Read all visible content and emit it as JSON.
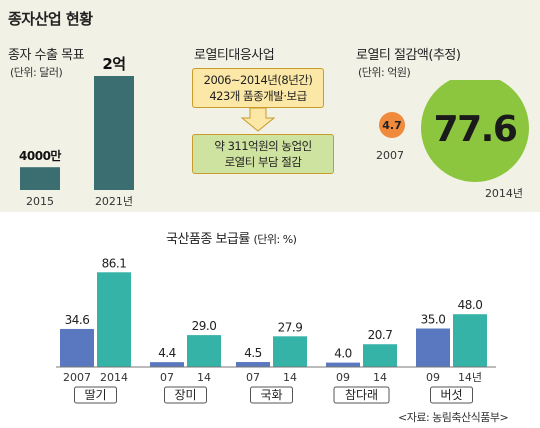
{
  "main_title": "종자산업 현황",
  "export_target": {
    "title": "종자 수출 목표",
    "unit": "(단위: 달러)",
    "bars": [
      {
        "year": "2015",
        "label": "4000만",
        "value": 40000000
      },
      {
        "year": "2021년",
        "label": "2억",
        "value": 200000000
      }
    ]
  },
  "royalty_project": {
    "title": "로열티대응사업",
    "box1_line1": "2006~2014년(8년간)",
    "box1_line2": "423개 품종개발·보급",
    "box2_line1": "약 311억원의 농업인",
    "box2_line2": "로열티 부담 절감"
  },
  "royalty_savings": {
    "title": "로열티 절감액(추정)",
    "unit": "(단위: 억원)",
    "items": [
      {
        "year": "2007",
        "value_label": "4.7",
        "value": 4.7
      },
      {
        "year": "2014년",
        "value_label": "77.6",
        "value": 77.6
      }
    ]
  },
  "colors": {
    "export_bar": "#3b6e70",
    "blue_bar": "#5a78bf",
    "teal_bar": "#36b3a7",
    "small_circle": "#f08a3c",
    "big_circle": "#8cc63f",
    "box_fill": "#fbe7a6",
    "box2_fill": "#cfe3a0"
  },
  "chart_data": {
    "type": "bar",
    "title": "국산품종 보급률",
    "unit": "(단위: %)",
    "ylim": [
      0,
      100
    ],
    "categories": [
      {
        "name": "딸기",
        "x": [
          "2007",
          "2014"
        ],
        "values": [
          34.6,
          86.1
        ],
        "labels": [
          "34.6",
          "86.1"
        ]
      },
      {
        "name": "장미",
        "x": [
          "07",
          "14"
        ],
        "values": [
          4.4,
          29.0
        ],
        "labels": [
          "4.4",
          "29.0"
        ]
      },
      {
        "name": "국화",
        "x": [
          "07",
          "14"
        ],
        "values": [
          4.5,
          27.9
        ],
        "labels": [
          "4.5",
          "27.9"
        ]
      },
      {
        "name": "참다래",
        "x": [
          "09",
          "14"
        ],
        "values": [
          4.0,
          20.7
        ],
        "labels": [
          "4.0",
          "20.7"
        ]
      },
      {
        "name": "버섯",
        "x": [
          "09",
          "14년"
        ],
        "values": [
          35.0,
          48.0
        ],
        "labels": [
          "35.0",
          "48.0"
        ]
      }
    ],
    "source": "<자료: 농림축산식품부>"
  }
}
